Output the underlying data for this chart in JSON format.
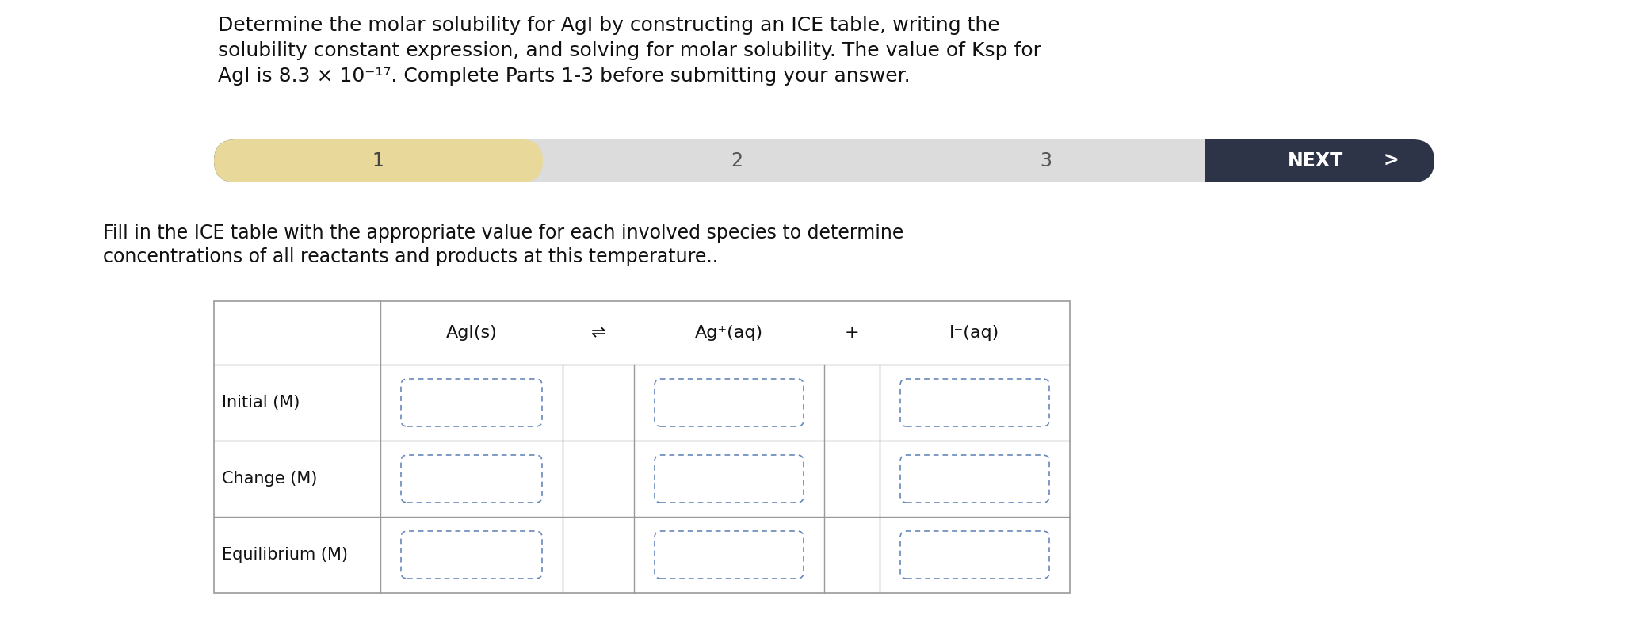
{
  "title_line1": "Determine the molar solubility for AgI by constructing an ICE table, writing the",
  "title_line2": "solubility constant expression, and solving for molar solubility. The value of Ksp for",
  "title_line3": "AgI is 8.3 × 10⁻¹⁷. Complete Parts 1-3 before submitting your answer.",
  "subtitle_line1": "Fill in the ICE table with the appropriate value for each involved species to determine",
  "subtitle_line2": "concentrations of all reactants and products at this temperature..",
  "nav_bar_color": "#2e3447",
  "nav_inactive_color": "#dcdcdc",
  "nav_active_color": "#e8d89a",
  "nav_items": [
    "1",
    "2",
    "3"
  ],
  "nav_next": "NEXT",
  "row_labels": [
    "Initial (M)",
    "Change (M)",
    "Equilibrium (M)"
  ],
  "col_header_labels": [
    "AgI(s)",
    "⇌",
    "Ag⁺(aq)",
    "+",
    "I⁻(aq)"
  ],
  "bg_color": "#ffffff",
  "table_border_color": "#999999",
  "input_border_color": "#6688bb",
  "title_fontsize": 18,
  "subtitle_fontsize": 17,
  "nav_fontsize": 17,
  "table_fontsize": 16,
  "row_label_fontsize": 15
}
